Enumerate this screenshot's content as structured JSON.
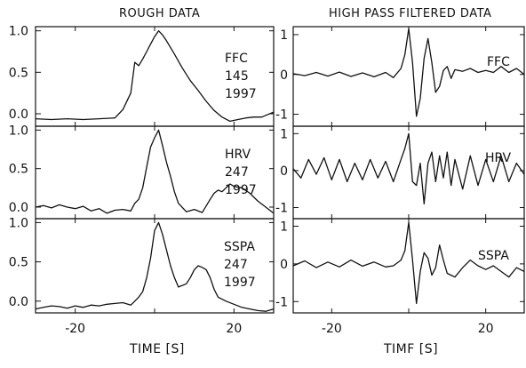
{
  "chart_data": [
    {
      "type": "line",
      "title": "ROUGH DATA",
      "xlabel": "TIME [S]",
      "xlim": [
        -30,
        30
      ],
      "xticks": [
        -20,
        0,
        20
      ],
      "xtick_labels": [
        "-20",
        "",
        "20"
      ],
      "ylim": [
        -0.15,
        1.05
      ],
      "yticks": [
        0.0,
        0.5,
        1.0
      ],
      "ytick_labels": [
        "0.0",
        "0.5",
        "1.0"
      ],
      "series": [
        {
          "name": "FFC",
          "annotation": [
            "FFC",
            "145",
            "1997"
          ],
          "x": [
            -30,
            -26,
            -22,
            -18,
            -14,
            -10,
            -8,
            -6,
            -5,
            -4,
            -3,
            -2,
            -1,
            0,
            1,
            2,
            3,
            5,
            7,
            9,
            11,
            13,
            15,
            17,
            19,
            21,
            23,
            25,
            27,
            30
          ],
          "y": [
            -0.06,
            -0.07,
            -0.06,
            -0.07,
            -0.06,
            -0.05,
            0.05,
            0.25,
            0.62,
            0.58,
            0.66,
            0.75,
            0.84,
            0.93,
            1.0,
            0.95,
            0.88,
            0.72,
            0.55,
            0.4,
            0.28,
            0.15,
            0.04,
            -0.04,
            -0.09,
            -0.07,
            -0.05,
            -0.04,
            -0.04,
            0.02
          ]
        },
        {
          "name": "HRV",
          "annotation": [
            "HRV",
            "247",
            "1997"
          ],
          "x": [
            -30,
            -28,
            -26,
            -24,
            -22,
            -20,
            -18,
            -16,
            -14,
            -12,
            -10,
            -8,
            -6,
            -5,
            -4,
            -3,
            -2,
            -1,
            0,
            1,
            2,
            3,
            4,
            5,
            6,
            8,
            10,
            12,
            14,
            15,
            16,
            17,
            18,
            19,
            20,
            22,
            24,
            26,
            28,
            30
          ],
          "y": [
            0.0,
            0.02,
            -0.01,
            0.03,
            0.0,
            -0.02,
            0.01,
            -0.05,
            -0.02,
            -0.08,
            -0.04,
            -0.03,
            -0.05,
            0.05,
            0.1,
            0.25,
            0.52,
            0.78,
            0.9,
            1.0,
            0.8,
            0.58,
            0.4,
            0.2,
            0.05,
            -0.06,
            -0.03,
            -0.07,
            0.1,
            0.18,
            0.22,
            0.2,
            0.25,
            0.3,
            0.27,
            0.25,
            0.18,
            0.08,
            0.0,
            -0.08
          ]
        },
        {
          "name": "SSPA",
          "annotation": [
            "SSPA",
            "247",
            "1997"
          ],
          "x": [
            -30,
            -28,
            -26,
            -24,
            -22,
            -20,
            -18,
            -16,
            -14,
            -12,
            -10,
            -8,
            -6,
            -5,
            -4,
            -3,
            -2,
            -1,
            0,
            1,
            2,
            3,
            4,
            5,
            6,
            8,
            9,
            10,
            11,
            12,
            13,
            14,
            15,
            16,
            18,
            20,
            22,
            24,
            26,
            28,
            30
          ],
          "y": [
            -0.1,
            -0.08,
            -0.06,
            -0.07,
            -0.09,
            -0.06,
            -0.08,
            -0.05,
            -0.06,
            -0.04,
            -0.03,
            -0.02,
            -0.05,
            0.0,
            0.05,
            0.12,
            0.3,
            0.55,
            0.9,
            1.0,
            0.85,
            0.65,
            0.45,
            0.3,
            0.18,
            0.22,
            0.3,
            0.4,
            0.45,
            0.43,
            0.4,
            0.3,
            0.15,
            0.05,
            0.0,
            -0.04,
            -0.08,
            -0.1,
            -0.12,
            -0.13,
            -0.1
          ]
        }
      ]
    },
    {
      "type": "line",
      "title": "HIGH PASS FILTERED DATA",
      "xlabel": "TIMF [S]",
      "xlim": [
        -30,
        30
      ],
      "xticks": [
        -20,
        0,
        20
      ],
      "xtick_labels": [
        "-20",
        "",
        "20"
      ],
      "ylim": [
        -1.3,
        1.2
      ],
      "yticks": [
        -1,
        0,
        1
      ],
      "ytick_labels": [
        "-1",
        "0",
        "1"
      ],
      "series": [
        {
          "name": "FFC",
          "annotation": [
            "FFC"
          ],
          "x": [
            -30,
            -27,
            -24,
            -21,
            -18,
            -15,
            -12,
            -9,
            -6,
            -4,
            -2,
            -1,
            0,
            1,
            2,
            3,
            4,
            5,
            6,
            7,
            8,
            9,
            10,
            11,
            12,
            14,
            16,
            18,
            20,
            22,
            24,
            26,
            28,
            30
          ],
          "y": [
            0.02,
            -0.03,
            0.05,
            -0.04,
            0.06,
            -0.05,
            0.04,
            -0.06,
            0.05,
            -0.08,
            0.15,
            0.5,
            1.15,
            0.3,
            -1.05,
            -0.6,
            0.4,
            0.9,
            0.3,
            -0.45,
            -0.3,
            0.1,
            0.2,
            -0.1,
            0.12,
            0.08,
            0.15,
            0.05,
            0.1,
            0.05,
            0.2,
            0.05,
            0.15,
            0.0
          ]
        },
        {
          "name": "HRV",
          "annotation": [
            "HRV"
          ],
          "x": [
            -30,
            -28,
            -26,
            -24,
            -22,
            -20,
            -18,
            -16,
            -14,
            -12,
            -10,
            -8,
            -6,
            -4,
            -2,
            -1,
            0,
            1,
            2,
            3,
            4,
            5,
            6,
            7,
            8,
            9,
            10,
            11,
            12,
            14,
            16,
            18,
            20,
            22,
            24,
            26,
            28,
            30
          ],
          "y": [
            0.05,
            -0.2,
            0.3,
            -0.1,
            0.35,
            -0.25,
            0.3,
            -0.3,
            0.2,
            -0.25,
            0.3,
            -0.2,
            0.25,
            -0.3,
            0.3,
            0.6,
            1.0,
            -0.3,
            -0.4,
            0.2,
            -0.9,
            0.2,
            0.5,
            -0.3,
            0.4,
            -0.2,
            0.5,
            -0.4,
            0.3,
            -0.5,
            0.4,
            -0.4,
            0.3,
            -0.3,
            0.4,
            -0.3,
            0.2,
            -0.1
          ]
        },
        {
          "name": "SSPA",
          "annotation": [
            "SSPA"
          ],
          "x": [
            -30,
            -27,
            -24,
            -21,
            -18,
            -15,
            -12,
            -9,
            -6,
            -4,
            -2,
            -1,
            0,
            1,
            2,
            3,
            4,
            5,
            6,
            7,
            8,
            9,
            10,
            12,
            14,
            16,
            18,
            20,
            22,
            24,
            26,
            28,
            30
          ],
          "y": [
            -0.05,
            0.08,
            -0.1,
            0.05,
            -0.08,
            0.1,
            -0.06,
            0.05,
            -0.08,
            -0.05,
            0.1,
            0.35,
            1.1,
            0.1,
            -1.05,
            -0.2,
            0.3,
            0.15,
            -0.3,
            -0.1,
            0.5,
            0.1,
            -0.25,
            -0.35,
            -0.1,
            0.1,
            -0.05,
            -0.15,
            -0.05,
            -0.2,
            -0.35,
            -0.1,
            -0.2
          ]
        }
      ]
    }
  ]
}
